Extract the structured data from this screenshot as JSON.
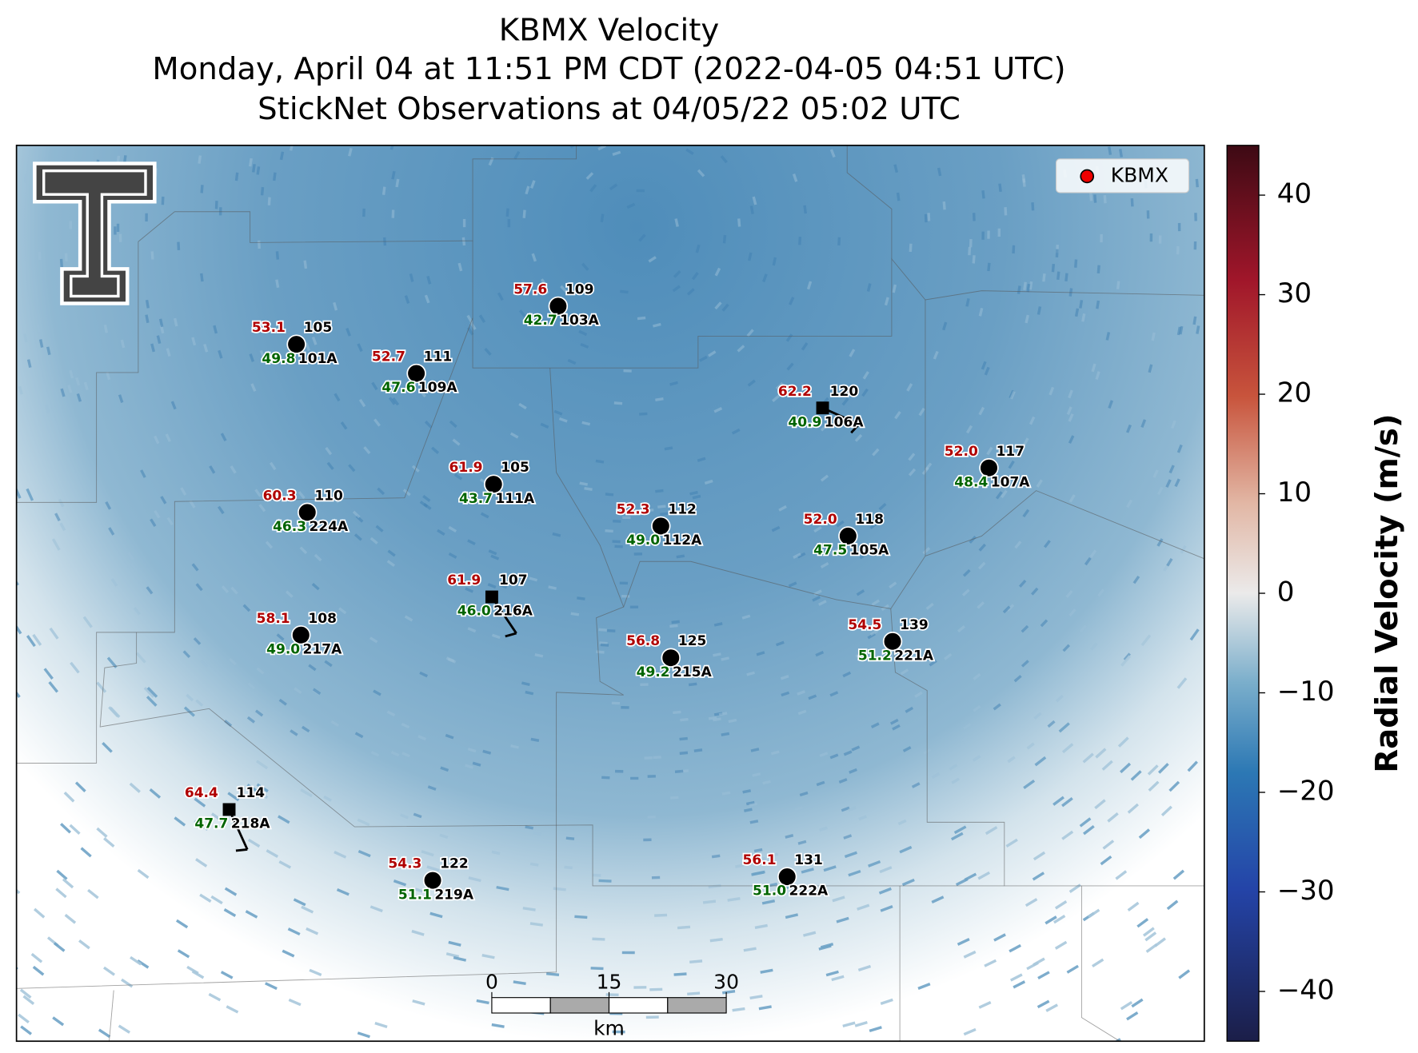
{
  "title": [
    "KBMX Velocity",
    "Monday, April 04 at 11:51 PM CDT (2022-04-05 04:51 UTC)",
    "StickNet Observations at 04/05/22 05:02 UTC"
  ],
  "legend": {
    "label": "KBMX"
  },
  "stations": [
    {
      "temperature": "53.1",
      "top": "105",
      "dewpoint": "49.8",
      "id": "101A"
    },
    {
      "temperature": "52.7",
      "top": "111",
      "dewpoint": "47.6",
      "id": "109A"
    },
    {
      "temperature": "57.6",
      "top": "109",
      "dewpoint": "42.7",
      "id": "103A"
    },
    {
      "temperature": "62.2",
      "top": "120",
      "dewpoint": "40.9",
      "id": "106A"
    },
    {
      "temperature": "52.0",
      "top": "117",
      "dewpoint": "48.4",
      "id": "107A"
    },
    {
      "temperature": "61.9",
      "top": "105",
      "dewpoint": "43.7",
      "id": "111A"
    },
    {
      "temperature": "60.3",
      "top": "110",
      "dewpoint": "46.3",
      "id": "224A"
    },
    {
      "temperature": "52.3",
      "top": "112",
      "dewpoint": "49.0",
      "id": "112A"
    },
    {
      "temperature": "52.0",
      "top": "118",
      "dewpoint": "47.5",
      "id": "105A"
    },
    {
      "temperature": "61.9",
      "top": "107",
      "dewpoint": "46.0",
      "id": "216A"
    },
    {
      "temperature": "58.1",
      "top": "108",
      "dewpoint": "49.0",
      "id": "217A"
    },
    {
      "temperature": "56.8",
      "top": "125",
      "dewpoint": "49.2",
      "id": "215A"
    },
    {
      "temperature": "54.5",
      "top": "139",
      "dewpoint": "51.2",
      "id": "221A"
    },
    {
      "temperature": "64.4",
      "top": "114",
      "dewpoint": "47.7",
      "id": "218A"
    },
    {
      "temperature": "54.3",
      "top": "122",
      "dewpoint": "51.1",
      "id": "219A"
    },
    {
      "temperature": "56.1",
      "top": "131",
      "dewpoint": "51.0",
      "id": "222A"
    }
  ],
  "scale_bar": {
    "ticks": [
      0,
      15,
      30
    ],
    "unit": "km"
  },
  "colorbar": {
    "label": "Radial Velocity (m/s)",
    "lim": [
      -45,
      45
    ],
    "ticks": [
      {
        "value": -40,
        "label": "−40"
      },
      {
        "value": -30,
        "label": "−30"
      },
      {
        "value": -20,
        "label": "−20"
      },
      {
        "value": -10,
        "label": "−10"
      },
      0,
      10,
      20,
      30,
      40
    ]
  }
}
